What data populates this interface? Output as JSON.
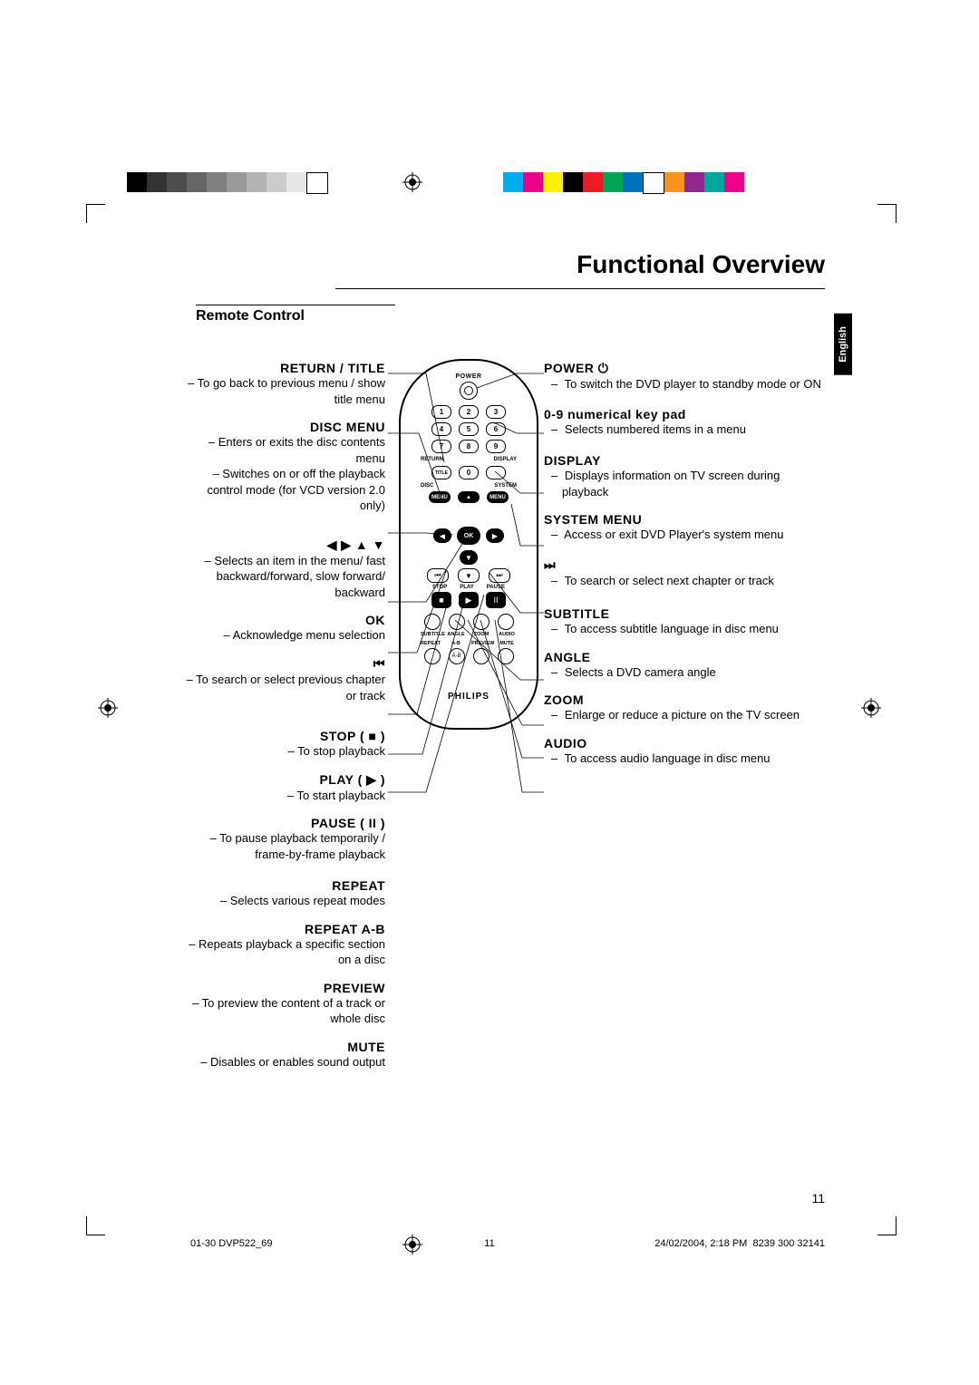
{
  "title": "Functional Overview",
  "subtitle": "Remote Control",
  "lang_tab": "English",
  "page_num": "11",
  "footer_left": "01-30 DVP522_69",
  "footer_mid": "11",
  "footer_right_1": "24/02/2004, 2:18 PM",
  "footer_right_2": "8239 300 32141",
  "brand": "PHILIPS",
  "rc_power_label": "POWER",
  "rc_nums": [
    "1",
    "2",
    "3",
    "4",
    "5",
    "6",
    "7",
    "8",
    "9",
    "0"
  ],
  "rc_labels": {
    "return": "RETURN",
    "display": "DISPLAY",
    "title": "TITLE",
    "disc": "DISC",
    "system": "SYSTEM",
    "menu": "MENU",
    "ok": "OK",
    "stop": "STOP",
    "play": "PLAY",
    "pause": "PAUSE",
    "subtitle": "SUBTITLE",
    "angle": "ANGLE",
    "zoom": "ZOOM",
    "audio": "AUDIO",
    "repeat": "REPEAT",
    "ab": "A-B",
    "preview": "PREVIEW",
    "mute": "MUTE"
  },
  "left_sections": [
    {
      "head": "RETURN / TITLE",
      "body": "– To go back to previous menu / show title menu"
    },
    {
      "head": "DISC MENU",
      "body": "– Enters or exits the disc contents menu\n– Switches on or off the playback control mode (for VCD version 2.0 only)"
    },
    {
      "head": "◀ ▶ ▲ ▼",
      "body": "– Selects an item in the menu/ fast backward/forward, slow forward/ backward"
    },
    {
      "head": "OK",
      "body": "– Acknowledge menu selection"
    },
    {
      "head": "⏮",
      "body": "– To search or select previous chapter or track"
    },
    {
      "head": "STOP ( ■ )",
      "body": "– To stop playback"
    },
    {
      "head": "PLAY ( ▶ )",
      "body": "– To start playback"
    },
    {
      "head": "PAUSE ( II )",
      "body": "– To pause playback temporarily / frame-by-frame playback"
    },
    {
      "head": "REPEAT",
      "body": "– Selects various repeat modes"
    },
    {
      "head": "REPEAT A-B",
      "body": "– Repeats playback a specific section on a disc"
    },
    {
      "head": "PREVIEW",
      "body": "– To preview the content of a track or whole disc"
    },
    {
      "head": "MUTE",
      "body": "– Disables or enables sound output"
    }
  ],
  "right_sections": [
    {
      "head": "POWER ⏻",
      "body": "To switch the DVD player to standby mode or ON"
    },
    {
      "head": "0-9 numerical key pad",
      "body": "Selects numbered items in a menu"
    },
    {
      "head": "DISPLAY",
      "body": "Displays information on TV screen during playback"
    },
    {
      "head": "SYSTEM MENU",
      "body": "Access or exit DVD Player's system menu"
    },
    {
      "head": "⏭",
      "body": "To search or select next chapter or track"
    },
    {
      "head": "SUBTITLE",
      "body": "To access subtitle language in disc menu"
    },
    {
      "head": "ANGLE",
      "body": "Selects a DVD camera angle"
    },
    {
      "head": "ZOOM",
      "body": "Enlarge or reduce a picture on the TV screen"
    },
    {
      "head": "AUDIO",
      "body": "To access audio language in disc menu"
    }
  ],
  "left_section_spacing": [
    0,
    14,
    26,
    2,
    8,
    28,
    4,
    4,
    18,
    4,
    4,
    4
  ],
  "right_section_spacing": [
    0,
    16,
    18,
    14,
    16,
    20,
    2,
    2,
    2
  ],
  "color_bars_left": [
    "#000000",
    "#333333",
    "#4d4d4d",
    "#666666",
    "#808080",
    "#999999",
    "#b3b3b3",
    "#cccccc",
    "#e6e6e6",
    "#ffffff"
  ],
  "color_bars_right": [
    "#00aeef",
    "#ec008c",
    "#fff200",
    "#000000",
    "#ed1c24",
    "#00a651",
    "#0072bc",
    "#ffffff",
    "#f7941d",
    "#92278f",
    "#00a99d",
    "#ec008c"
  ],
  "reg_mark_color": "#000000"
}
